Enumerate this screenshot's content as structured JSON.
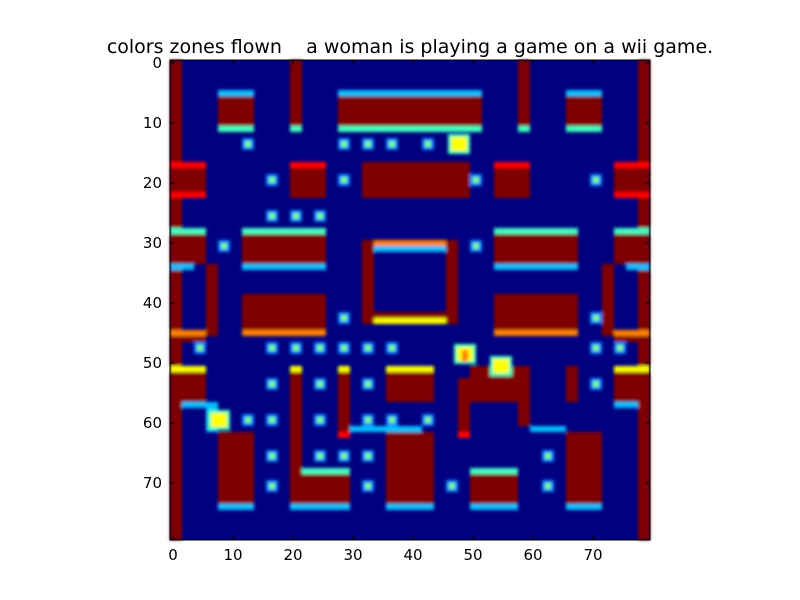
{
  "figure": {
    "title": "colors zones flown    a woman is playing a game on a wii game.",
    "colormap": "jet",
    "interpolation": "bilinear (blurred)",
    "grid_size": [
      80,
      80
    ]
  },
  "axes": {
    "x_ticks": [
      "0",
      "10",
      "20",
      "30",
      "40",
      "50",
      "60",
      "70"
    ],
    "y_ticks": [
      "0",
      "10",
      "20",
      "30",
      "40",
      "50",
      "60",
      "70"
    ],
    "xlim": [
      0,
      80
    ],
    "ylim": [
      80,
      0
    ]
  },
  "colors": {
    "background": "#000080",
    "wall": "#7f0000",
    "wall_edge": "#ff0000",
    "edge_light": "#00bfff",
    "edge_aqua": "#40ffbf",
    "pellet": "#80ff80",
    "pellet_halo": "#0080ff",
    "sprite": "#ffff00",
    "sprite_orange": "#ff8000"
  },
  "scene": {
    "pellets": [
      [
        13,
        14
      ],
      [
        29,
        14
      ],
      [
        33,
        14
      ],
      [
        37,
        14
      ],
      [
        43,
        14
      ],
      [
        17,
        20
      ],
      [
        29,
        20
      ],
      [
        51,
        20
      ],
      [
        71,
        20
      ],
      [
        17,
        26
      ],
      [
        21,
        26
      ],
      [
        25,
        26
      ],
      [
        9,
        31
      ],
      [
        51,
        31
      ],
      [
        29,
        43
      ],
      [
        71,
        43
      ],
      [
        5,
        48
      ],
      [
        17,
        48
      ],
      [
        21,
        48
      ],
      [
        25,
        48
      ],
      [
        29,
        48
      ],
      [
        33,
        48
      ],
      [
        37,
        48
      ],
      [
        71,
        48
      ],
      [
        75,
        48
      ],
      [
        17,
        54
      ],
      [
        25,
        54
      ],
      [
        33,
        54
      ],
      [
        71,
        54
      ],
      [
        13,
        60
      ],
      [
        17,
        60
      ],
      [
        25,
        60
      ],
      [
        33,
        60
      ],
      [
        37,
        60
      ],
      [
        43,
        60
      ],
      [
        17,
        66
      ],
      [
        25,
        66
      ],
      [
        29,
        66
      ],
      [
        33,
        66
      ],
      [
        63,
        66
      ],
      [
        17,
        71
      ],
      [
        33,
        71
      ],
      [
        47,
        71
      ],
      [
        63,
        71
      ]
    ],
    "sprites": [
      {
        "name": "pacman",
        "x": 48,
        "y": 14
      },
      {
        "name": "ghost-center",
        "x": 49,
        "y": 49
      },
      {
        "name": "ghost-right",
        "x": 55,
        "y": 51
      },
      {
        "name": "ghost-left",
        "x": 8,
        "y": 60
      }
    ]
  }
}
